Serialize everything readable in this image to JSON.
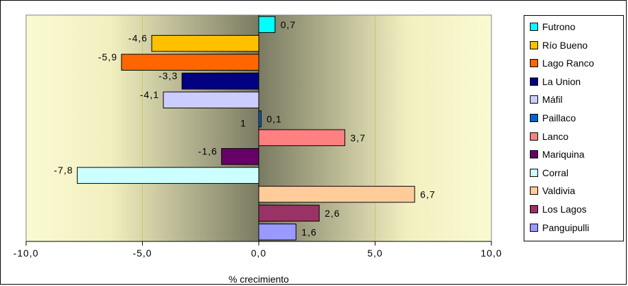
{
  "chart_data": {
    "type": "bar",
    "orientation": "horizontal",
    "categories": [
      "Futrono",
      "Río Bueno",
      "Lago Ranco",
      "La Union",
      "Máfil",
      "Paillaco",
      "Lanco",
      "Mariquina",
      "Corral",
      "Valdivia",
      "Los Lagos",
      "Panguipulli"
    ],
    "values": [
      0.7,
      -4.6,
      -5.9,
      -3.3,
      -4.1,
      0.1,
      3.7,
      -1.6,
      -7.8,
      6.7,
      2.6,
      1.6
    ],
    "data_labels": [
      "0,7",
      "-4,6",
      "-5,9",
      "-3,3",
      "-4,1",
      "0,1",
      "3,7",
      "-1,6",
      "-7,8",
      "6,7",
      "2,6",
      "1,6"
    ],
    "colors": [
      "#00ffff",
      "#ffc000",
      "#ff6600",
      "#000080",
      "#ccccff",
      "#0066cc",
      "#ff8080",
      "#660066",
      "#ccffff",
      "#ffcc99",
      "#993366",
      "#9999ff"
    ],
    "stray_label": "1",
    "xlabel": "% crecimiento",
    "xlim": [
      -10,
      10
    ],
    "xticks": [
      -10,
      -5,
      0,
      5,
      10
    ],
    "xtick_labels": [
      "-10,0",
      "-5,0",
      "0,0",
      "5,0",
      "10,0"
    ],
    "legend_position": "right",
    "grid": true
  }
}
